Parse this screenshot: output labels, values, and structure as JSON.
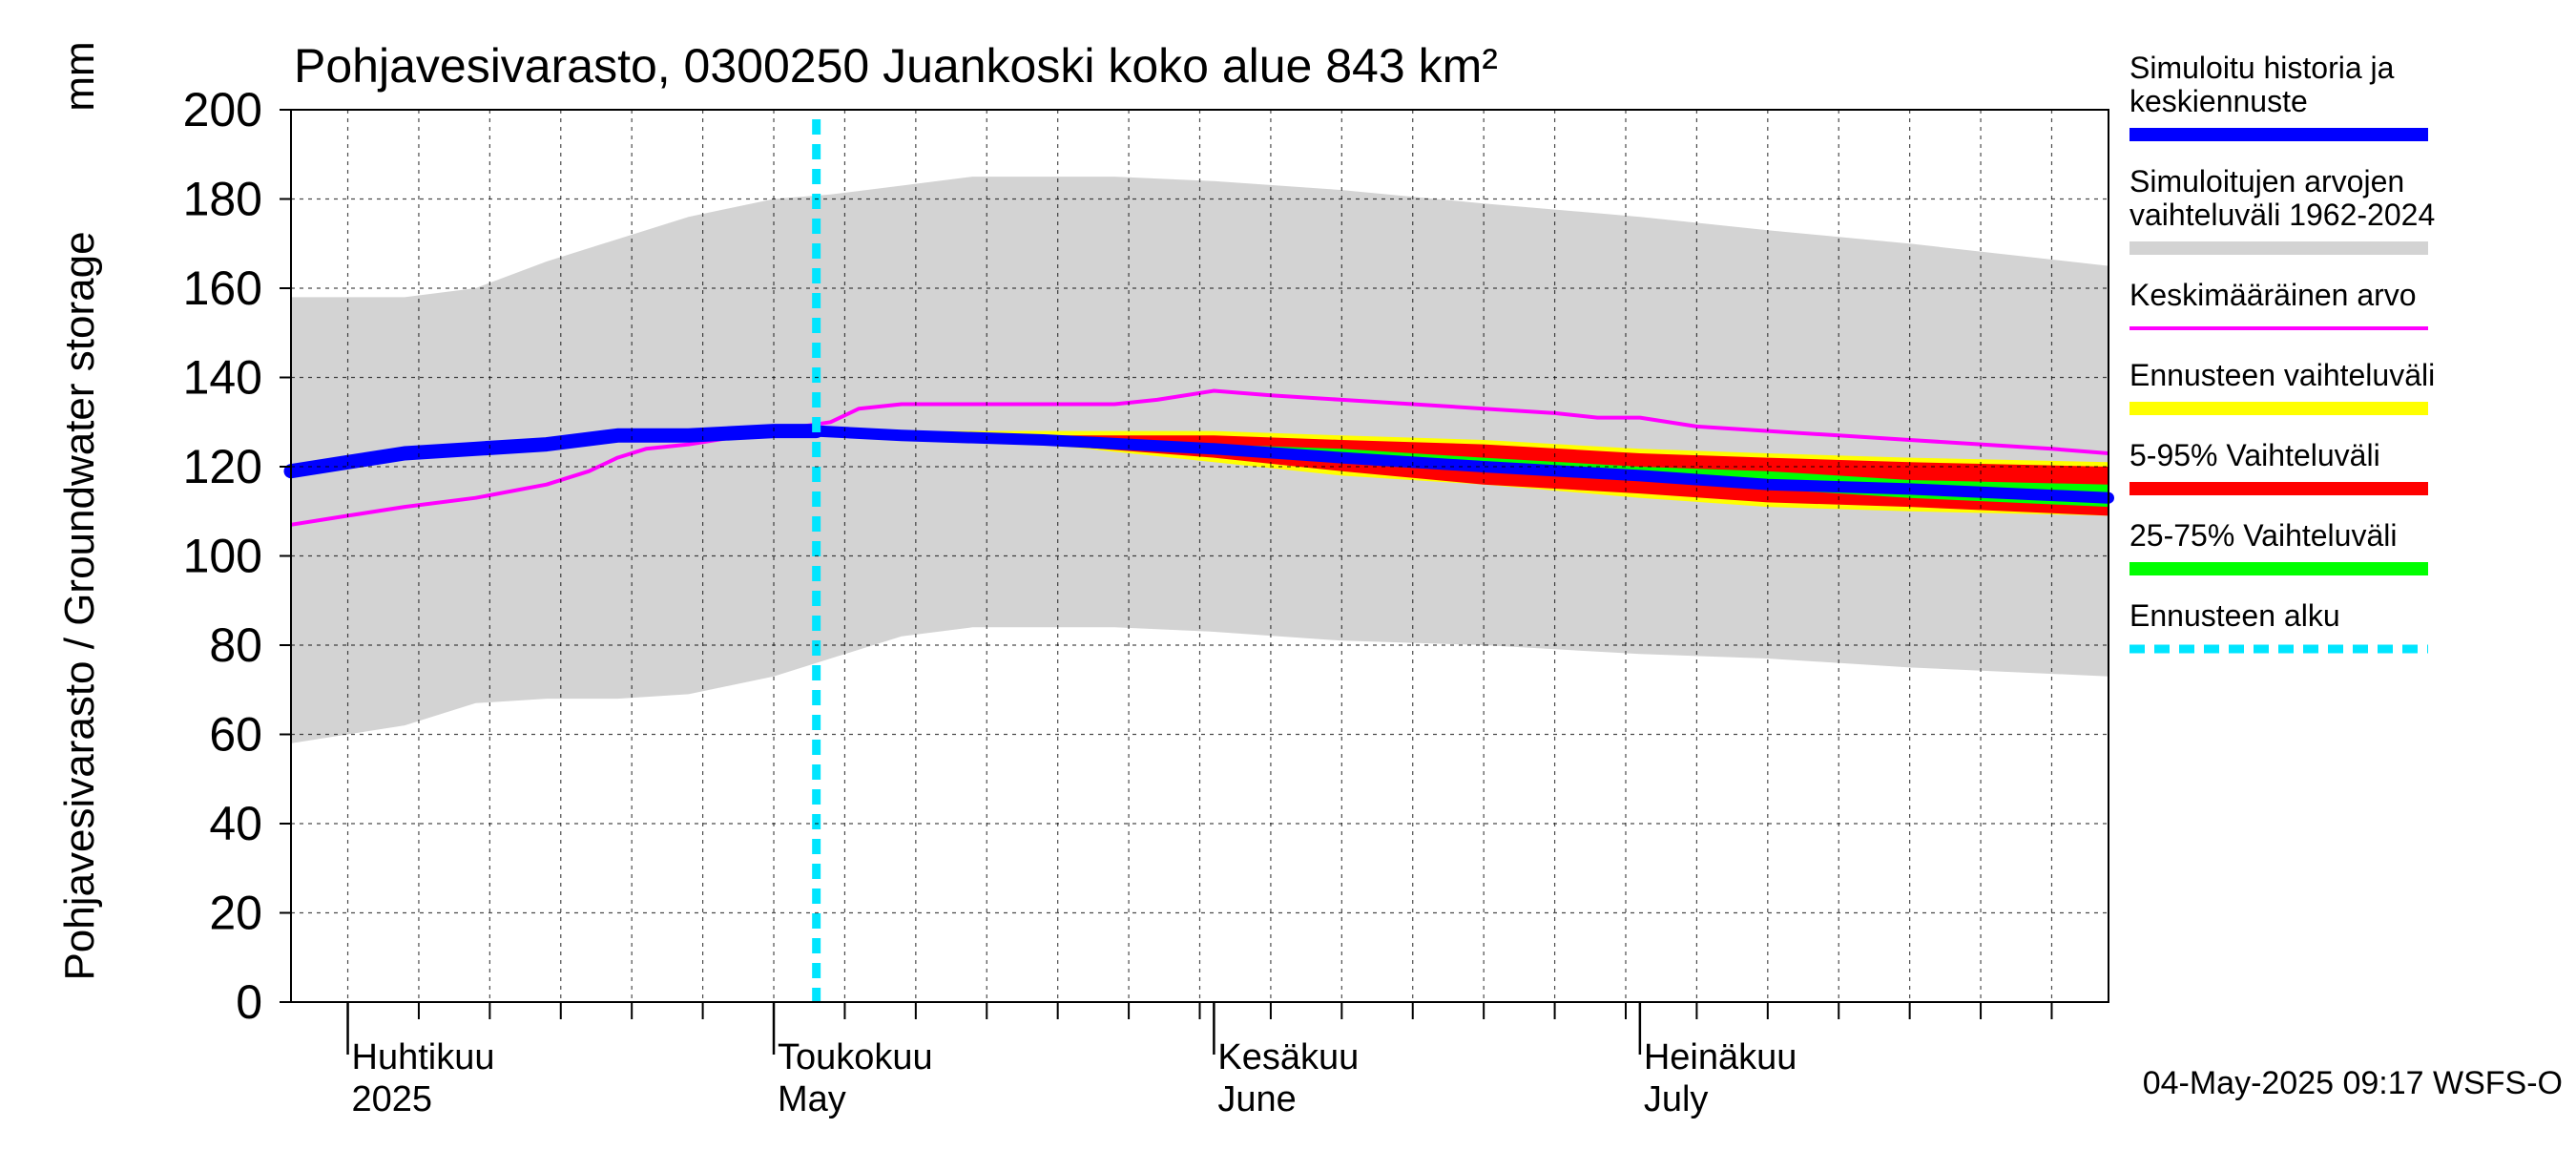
{
  "chart_data": {
    "type": "area",
    "title": "Pohjavesivarasto, 0300250 Juankoski koko alue 843 km²",
    "ylabel": "Pohjavesivarasto / Groundwater storage",
    "yunit": "mm",
    "ylim": [
      0,
      200
    ],
    "yticks": [
      0,
      20,
      40,
      60,
      80,
      100,
      120,
      140,
      160,
      180,
      200
    ],
    "grid": true,
    "legend_position": "right",
    "x_domain": [
      "2025-03-28",
      "2025-08-03"
    ],
    "x_month_labels": [
      {
        "date": "2025-04-01",
        "line1": "Huhtikuu",
        "line2": "2025"
      },
      {
        "date": "2025-05-01",
        "line1": "Toukokuu",
        "line2": "May"
      },
      {
        "date": "2025-06-01",
        "line1": "Kesäkuu",
        "line2": "June"
      },
      {
        "date": "2025-07-01",
        "line1": "Heinäkuu",
        "line2": "July"
      }
    ],
    "forecast_start": "2025-05-04",
    "footer": "04-May-2025 09:17 WSFS-O",
    "colors": {
      "history": "#0000ff",
      "range": "#d3d3d3",
      "mean": "#ff00ff",
      "band_forecast": "#ffff00",
      "band_5_95": "#ff0000",
      "band_25_75": "#00ff00",
      "forecast_start": "#00e5ff"
    },
    "legend": [
      {
        "key": "history",
        "lines": [
          "Simuloitu historia ja",
          "keskiennuste"
        ],
        "style": "thick",
        "color": "#0000ff"
      },
      {
        "key": "range",
        "lines": [
          "Simuloitujen arvojen",
          "vaihteluväli 1962-2024"
        ],
        "style": "thick",
        "color": "#d3d3d3"
      },
      {
        "key": "mean",
        "lines": [
          "Keskimääräinen arvo"
        ],
        "style": "thin",
        "color": "#ff00ff"
      },
      {
        "key": "band_forecast",
        "lines": [
          "Ennusteen vaihteluväli"
        ],
        "style": "thick",
        "color": "#ffff00"
      },
      {
        "key": "band_5_95",
        "lines": [
          "5-95% Vaihteluväli"
        ],
        "style": "thick",
        "color": "#ff0000"
      },
      {
        "key": "band_25_75",
        "lines": [
          "25-75% Vaihteluväli"
        ],
        "style": "thick",
        "color": "#00ff00"
      },
      {
        "key": "forecast_start",
        "lines": [
          "Ennusteen alku"
        ],
        "style": "dashed",
        "color": "#00e5ff"
      }
    ],
    "series": [
      {
        "key": "range",
        "x": [
          "2025-03-28",
          "2025-04-05",
          "2025-04-10",
          "2025-04-15",
          "2025-04-20",
          "2025-04-25",
          "2025-05-01",
          "2025-05-05",
          "2025-05-10",
          "2025-05-15",
          "2025-05-20",
          "2025-05-25",
          "2025-06-01",
          "2025-06-10",
          "2025-06-20",
          "2025-07-01",
          "2025-07-10",
          "2025-07-20",
          "2025-08-03"
        ],
        "upper": [
          158,
          158,
          160,
          166,
          171,
          176,
          180,
          181,
          183,
          185,
          185,
          185,
          184,
          182,
          179,
          176,
          173,
          170,
          165
        ],
        "lower": [
          58,
          62,
          67,
          68,
          68,
          69,
          73,
          77,
          82,
          84,
          84,
          84,
          83,
          81,
          80,
          78,
          77,
          75,
          73
        ]
      },
      {
        "key": "mean",
        "x": [
          "2025-03-28",
          "2025-04-01",
          "2025-04-05",
          "2025-04-10",
          "2025-04-15",
          "2025-04-18",
          "2025-04-20",
          "2025-04-22",
          "2025-04-25",
          "2025-04-29",
          "2025-05-03",
          "2025-05-05",
          "2025-05-07",
          "2025-05-10",
          "2025-05-15",
          "2025-05-20",
          "2025-05-25",
          "2025-05-28",
          "2025-06-01",
          "2025-06-05",
          "2025-06-10",
          "2025-06-15",
          "2025-06-20",
          "2025-06-25",
          "2025-06-28",
          "2025-07-01",
          "2025-07-05",
          "2025-07-10",
          "2025-07-15",
          "2025-07-20",
          "2025-07-25",
          "2025-07-30",
          "2025-08-03"
        ],
        "values": [
          107,
          109,
          111,
          113,
          116,
          119,
          122,
          124,
          125,
          127,
          129,
          130,
          133,
          134,
          134,
          134,
          134,
          135,
          137,
          136,
          135,
          134,
          133,
          132,
          131,
          131,
          129,
          128,
          127,
          126,
          125,
          124,
          123
        ]
      },
      {
        "key": "history",
        "x": [
          "2025-03-28",
          "2025-04-01",
          "2025-04-05",
          "2025-04-10",
          "2025-04-15",
          "2025-04-20",
          "2025-04-25",
          "2025-05-01",
          "2025-05-04"
        ],
        "values": [
          119,
          121,
          123,
          124,
          125,
          127,
          127,
          128,
          128
        ]
      },
      {
        "key": "band_forecast",
        "x": [
          "2025-05-04",
          "2025-05-10",
          "2025-05-20",
          "2025-06-01",
          "2025-06-10",
          "2025-06-20",
          "2025-07-01",
          "2025-07-10",
          "2025-07-20",
          "2025-08-03"
        ],
        "upper": [
          128,
          128,
          128,
          128,
          127,
          126,
          124,
          123,
          122,
          121
        ],
        "lower": [
          128,
          127,
          125,
          121,
          118,
          116,
          113,
          111,
          110,
          109
        ]
      },
      {
        "key": "band_5_95",
        "x": [
          "2025-05-04",
          "2025-05-10",
          "2025-05-20",
          "2025-06-01",
          "2025-06-10",
          "2025-06-20",
          "2025-07-01",
          "2025-07-10",
          "2025-07-20",
          "2025-08-03"
        ],
        "upper": [
          128,
          128,
          127,
          127,
          126,
          125,
          123,
          122,
          121,
          120
        ],
        "lower": [
          128,
          127,
          125,
          122,
          119,
          116,
          114,
          112,
          111,
          109
        ]
      },
      {
        "key": "band_25_75",
        "x": [
          "2025-05-04",
          "2025-05-10",
          "2025-05-20",
          "2025-06-01",
          "2025-06-10",
          "2025-06-20",
          "2025-07-01",
          "2025-07-10",
          "2025-07-20",
          "2025-08-03"
        ],
        "upper": [
          128,
          127,
          126,
          125,
          124,
          122,
          120,
          119,
          117,
          116
        ],
        "lower": [
          128,
          127,
          125,
          123,
          121,
          119,
          117,
          115,
          113,
          111
        ]
      },
      {
        "key": "median",
        "x": [
          "2025-05-04",
          "2025-05-10",
          "2025-05-20",
          "2025-06-01",
          "2025-06-10",
          "2025-06-20",
          "2025-07-01",
          "2025-07-10",
          "2025-07-20",
          "2025-08-03"
        ],
        "values": [
          128,
          127,
          126,
          124,
          122,
          120,
          118,
          116,
          115,
          113
        ]
      }
    ]
  }
}
